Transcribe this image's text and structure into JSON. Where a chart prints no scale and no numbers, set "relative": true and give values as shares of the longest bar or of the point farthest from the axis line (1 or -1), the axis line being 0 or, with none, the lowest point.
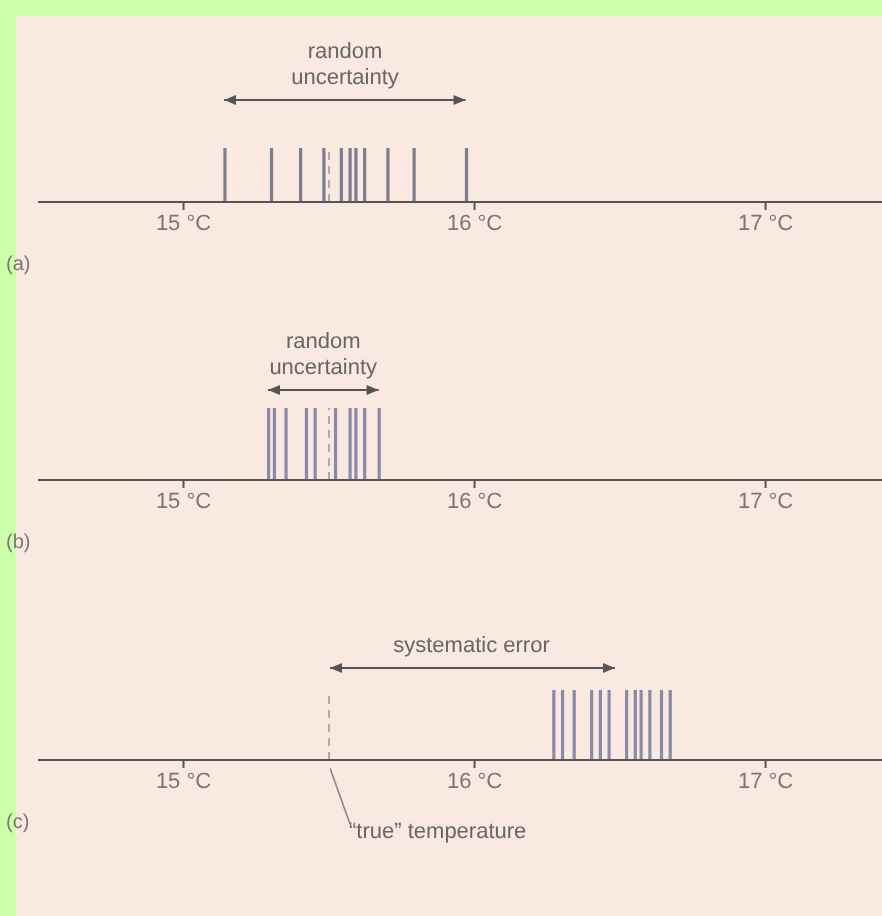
{
  "chart_data": [
    {
      "type": "bar",
      "title": "(a)",
      "annotations": [
        "random uncertainty"
      ],
      "x": [
        15.14,
        15.3,
        15.4,
        15.48,
        15.54,
        15.57,
        15.59,
        15.62,
        15.7,
        15.79,
        15.97
      ],
      "values": [
        1,
        1,
        1,
        1,
        1,
        1,
        1,
        1,
        1,
        1,
        1
      ],
      "relative": true,
      "color": "#7d7d90",
      "xlim": [
        14.5,
        17.4
      ],
      "xticks": [
        {
          "value": 15,
          "label": "15 °C"
        },
        {
          "value": 16,
          "label": "16 °C"
        },
        {
          "value": 17,
          "label": "17 °C"
        }
      ],
      "tick_labels": "x",
      "ref_lines": [
        {
          "axis": "x",
          "value": 15.5,
          "line_style": "dashed",
          "color": "#aaaaaa"
        }
      ]
    },
    {
      "type": "bar",
      "title": "(b)",
      "annotations": [
        "random uncertainty"
      ],
      "x": [
        15.29,
        15.31,
        15.35,
        15.42,
        15.45,
        15.52,
        15.57,
        15.59,
        15.62,
        15.67
      ],
      "values": [
        1,
        1,
        1,
        1,
        1,
        1,
        1,
        1,
        1,
        1
      ],
      "relative": true,
      "color": "#8a8aa8",
      "xlim": [
        14.5,
        17.4
      ],
      "xticks": [
        {
          "value": 15,
          "label": "15 °C"
        },
        {
          "value": 16,
          "label": "16 °C"
        },
        {
          "value": 17,
          "label": "17 °C"
        }
      ],
      "tick_labels": "x",
      "ref_lines": [
        {
          "axis": "x",
          "value": 15.5,
          "line_style": "dashed",
          "color": "#aaaaaa"
        }
      ]
    },
    {
      "type": "bar",
      "title": "(c)",
      "annotations": [
        "systematic error"
      ],
      "x": [
        16.27,
        16.3,
        16.34,
        16.4,
        16.43,
        16.46,
        16.52,
        16.55,
        16.57,
        16.6,
        16.64,
        16.67
      ],
      "values": [
        1,
        1,
        1,
        1,
        1,
        1,
        1,
        1,
        1,
        1,
        1,
        1
      ],
      "relative": true,
      "color": "#8a8aa8",
      "xlim": [
        14.5,
        17.4
      ],
      "xticks": [
        {
          "value": 15,
          "label": "15 °C"
        },
        {
          "value": 16,
          "label": "16 °C"
        },
        {
          "value": 17,
          "label": "17 °C"
        }
      ],
      "tick_labels": "x",
      "ref_lines": [
        {
          "axis": "x",
          "value": 15.5,
          "line_style": "dashed",
          "color": "#aaaaaa",
          "label": "“true” temperature"
        }
      ]
    }
  ]
}
